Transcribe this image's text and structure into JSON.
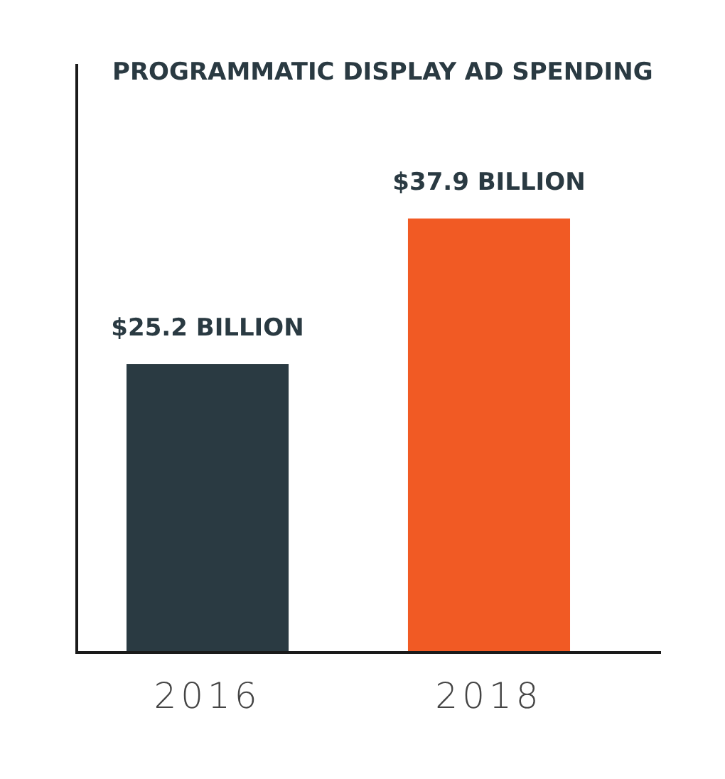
{
  "chart_data": {
    "type": "bar",
    "title": "PROGRAMMATIC DISPLAY AD SPENDING",
    "categories": [
      "2016",
      "2018"
    ],
    "values": [
      25.2,
      37.9
    ],
    "colors": [
      "#2a3a42",
      "#f15a24"
    ],
    "value_labels": [
      "$25.2 BILLION",
      "$37.9 BILLION"
    ],
    "ylim": [
      0,
      51.4
    ],
    "tick_labels": "x"
  }
}
